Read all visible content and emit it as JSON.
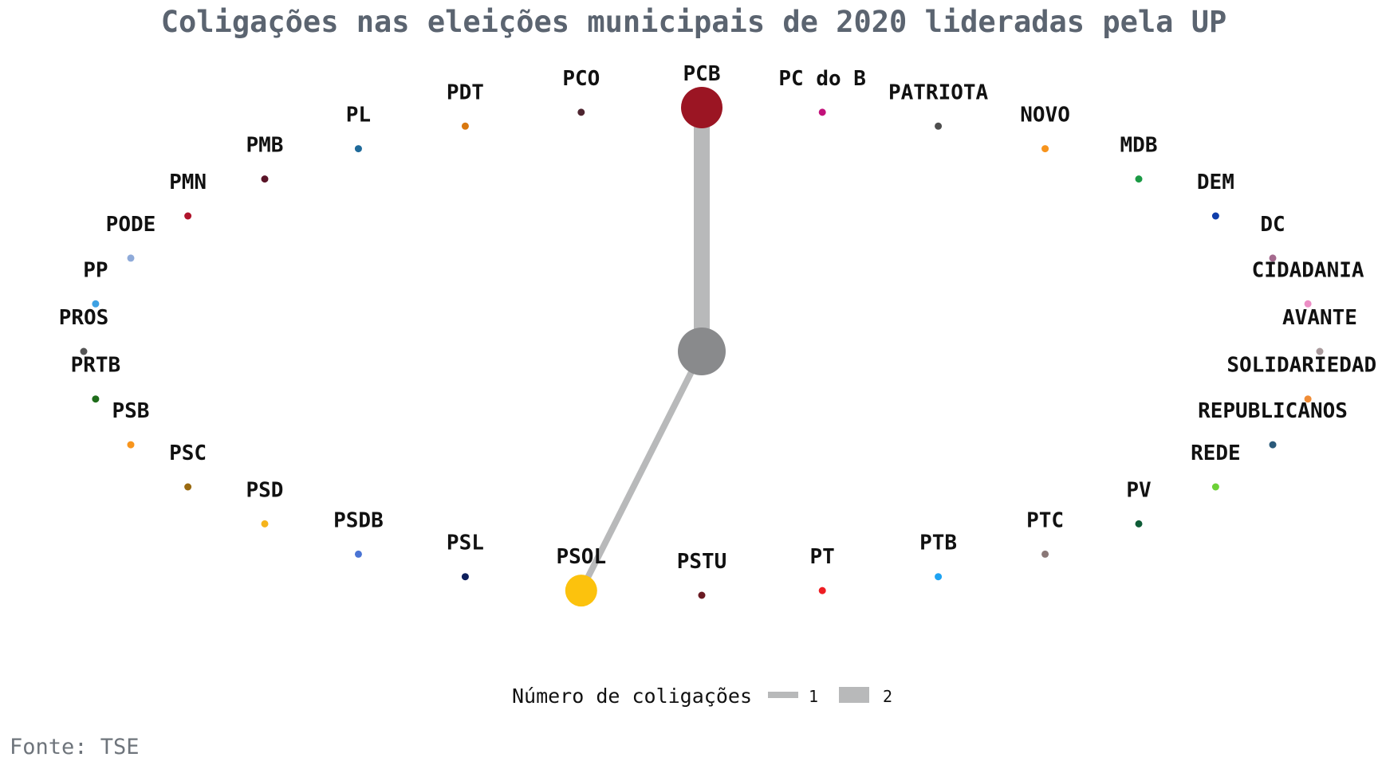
{
  "chart_data": {
    "type": "network",
    "title": "Coligações nas eleições municipais de 2020 lideradas pela UP",
    "caption": "Fonte: TSE",
    "legend": {
      "title": "Número de coligações",
      "entries": [
        {
          "label": "1",
          "value": 1
        },
        {
          "label": "2",
          "value": 2
        }
      ],
      "position": "bottom"
    },
    "hub": {
      "name": "UP",
      "label": "",
      "color": "#898a8c"
    },
    "nodes": [
      {
        "name": "PCB",
        "color": "#9b1523",
        "coligacoes": 2
      },
      {
        "name": "PC do B",
        "color": "#c2117a",
        "coligacoes": 0
      },
      {
        "name": "PATRIOTA",
        "color": "#4e4e4e",
        "coligacoes": 0
      },
      {
        "name": "NOVO",
        "color": "#f7941d",
        "coligacoes": 0
      },
      {
        "name": "MDB",
        "color": "#1b9a45",
        "coligacoes": 0
      },
      {
        "name": "DEM",
        "color": "#0f3eaa",
        "coligacoes": 0
      },
      {
        "name": "DC",
        "color": "#a56a8e",
        "coligacoes": 0
      },
      {
        "name": "CIDADANIA",
        "color": "#ec8ec5",
        "coligacoes": 0
      },
      {
        "name": "AVANTE",
        "color": "#a89a9c",
        "coligacoes": 0
      },
      {
        "name": "SOLIDARIEDADE",
        "color": "#f08c35",
        "coligacoes": 0
      },
      {
        "name": "REPUBLICANOS",
        "color": "#2b5a7a",
        "coligacoes": 0
      },
      {
        "name": "REDE",
        "color": "#6cd137",
        "coligacoes": 0
      },
      {
        "name": "PV",
        "color": "#0e5c37",
        "coligacoes": 0
      },
      {
        "name": "PTC",
        "color": "#8a7877",
        "coligacoes": 0
      },
      {
        "name": "PTB",
        "color": "#1ea3f2",
        "coligacoes": 0
      },
      {
        "name": "PT",
        "color": "#ee1d23",
        "coligacoes": 0
      },
      {
        "name": "PSTU",
        "color": "#6a1a22",
        "coligacoes": 0
      },
      {
        "name": "PSOL",
        "color": "#fcc20d",
        "coligacoes": 1
      },
      {
        "name": "PSL",
        "color": "#0d1f5c",
        "coligacoes": 0
      },
      {
        "name": "PSDB",
        "color": "#4a74d4",
        "coligacoes": 0
      },
      {
        "name": "PSD",
        "color": "#f5b41c",
        "coligacoes": 0
      },
      {
        "name": "PSC",
        "color": "#9a6a11",
        "coligacoes": 0
      },
      {
        "name": "PSB",
        "color": "#f8951d",
        "coligacoes": 0
      },
      {
        "name": "PRTB",
        "color": "#1e6c1a",
        "coligacoes": 0
      },
      {
        "name": "PROS",
        "color": "#555555",
        "coligacoes": 0
      },
      {
        "name": "PP",
        "color": "#3ea1e3",
        "coligacoes": 0
      },
      {
        "name": "PODE",
        "color": "#8eaad9",
        "coligacoes": 0
      },
      {
        "name": "PMN",
        "color": "#b0152c",
        "coligacoes": 0
      },
      {
        "name": "PMB",
        "color": "#5a1428",
        "coligacoes": 0
      },
      {
        "name": "PL",
        "color": "#1f6a9a",
        "coligacoes": 0
      },
      {
        "name": "PDT",
        "color": "#d9780f",
        "coligacoes": 0
      },
      {
        "name": "PCO",
        "color": "#4e2530",
        "coligacoes": 0
      }
    ],
    "edges": [
      {
        "from": "UP",
        "to": "PCB",
        "coligacoes": 2
      },
      {
        "from": "UP",
        "to": "PSOL",
        "coligacoes": 1
      }
    ],
    "edge_color": "#b8b9ba"
  }
}
